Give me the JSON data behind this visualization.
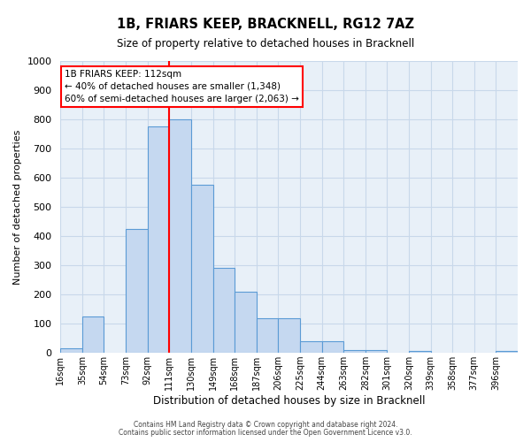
{
  "title": "1B, FRIARS KEEP, BRACKNELL, RG12 7AZ",
  "subtitle": "Size of property relative to detached houses in Bracknell",
  "xlabel": "Distribution of detached houses by size in Bracknell",
  "ylabel": "Number of detached properties",
  "bin_labels": [
    "16sqm",
    "35sqm",
    "54sqm",
    "73sqm",
    "92sqm",
    "111sqm",
    "130sqm",
    "149sqm",
    "168sqm",
    "187sqm",
    "206sqm",
    "225sqm",
    "244sqm",
    "263sqm",
    "282sqm",
    "301sqm",
    "320sqm",
    "339sqm",
    "358sqm",
    "377sqm",
    "396sqm"
  ],
  "bin_edges": [
    16,
    35,
    54,
    73,
    92,
    111,
    130,
    149,
    168,
    187,
    206,
    225,
    244,
    263,
    282,
    301,
    320,
    339,
    358,
    377,
    396
  ],
  "bar_heights": [
    15,
    125,
    0,
    425,
    775,
    800,
    575,
    290,
    210,
    120,
    120,
    40,
    40,
    10,
    10,
    0,
    7,
    0,
    0,
    0,
    7
  ],
  "bar_color": "#c5d8f0",
  "bar_edge_color": "#5b9bd5",
  "vline_x": 111,
  "vline_color": "red",
  "ylim": [
    0,
    1000
  ],
  "yticks": [
    0,
    100,
    200,
    300,
    400,
    500,
    600,
    700,
    800,
    900,
    1000
  ],
  "annotation_title": "1B FRIARS KEEP: 112sqm",
  "annotation_line1": "← 40% of detached houses are smaller (1,348)",
  "annotation_line2": "60% of semi-detached houses are larger (2,063) →",
  "footer1": "Contains HM Land Registry data © Crown copyright and database right 2024.",
  "footer2": "Contains public sector information licensed under the Open Government Licence v3.0.",
  "grid_color": "#c8d8ea",
  "bg_color": "#e8f0f8"
}
